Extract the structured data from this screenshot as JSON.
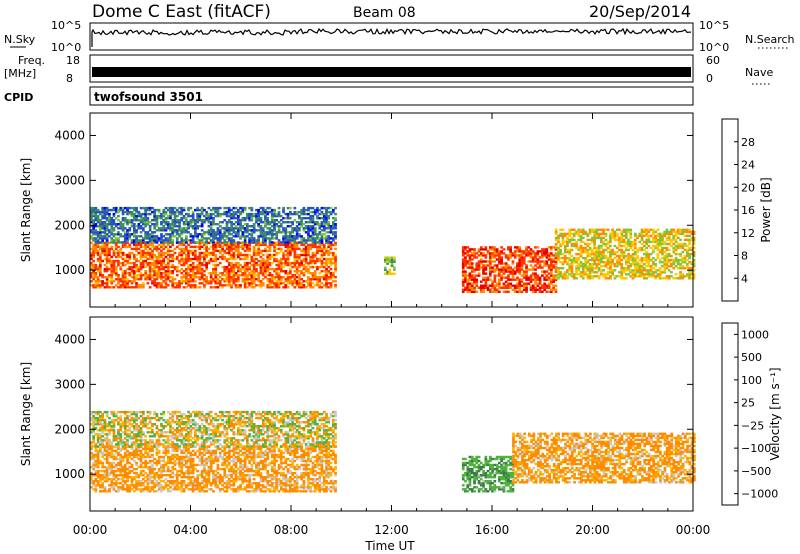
{
  "header": {
    "title": "Dome C East (fitACF)",
    "beam": "Beam 08",
    "date": "20/Sep/2014"
  },
  "top_panels": {
    "nsky_label": "N.Sky",
    "nsky_ticks": [
      "10^5",
      "10^0"
    ],
    "nsky_right_ticks": [
      "10^5",
      "10^0"
    ],
    "nsearch_label": "N.Search",
    "freq_label_1": "Freq.",
    "freq_label_2": "[MHz]",
    "freq_ticks": [
      "18",
      "8"
    ],
    "nave_ticks": [
      "60",
      "0"
    ],
    "nave_label": "Nave",
    "cpid_label": "CPID",
    "cpid_value": "twofsound 3501"
  },
  "chart_data": [
    {
      "type": "heatmap",
      "quantity": "Power",
      "ylabel": "Slant Range [km]",
      "xlabel": "Time UT",
      "xlim": [
        "00:00",
        "24:00"
      ],
      "ylim": [
        180,
        4500
      ],
      "x_ticks": [
        "00:00",
        "04:00",
        "08:00",
        "12:00",
        "16:00",
        "20:00",
        "00:00"
      ],
      "y_ticks": [
        1000,
        2000,
        3000,
        4000
      ],
      "colorbar": {
        "label": "Power [dB]",
        "ticks": [
          "4",
          "8",
          "12",
          "16",
          "20",
          "24",
          "28"
        ],
        "colors": [
          "#0000ff",
          "#2850c8",
          "#3c8c64",
          "#78c83c",
          "#ffc800",
          "#ff8c00",
          "#ff3200",
          "#e60000"
        ]
      },
      "echo_regions": [
        {
          "t_start": 0.0,
          "t_end": 9.8,
          "r_start": 600,
          "r_end": 1600,
          "power_db": 24
        },
        {
          "t_start": 0.0,
          "t_end": 9.8,
          "r_start": 1600,
          "r_end": 2400,
          "power_db": 8
        },
        {
          "t_start": 11.7,
          "t_end": 12.1,
          "r_start": 900,
          "r_end": 1300,
          "power_db": 14
        },
        {
          "t_start": 14.8,
          "t_end": 18.5,
          "r_start": 500,
          "r_end": 1500,
          "power_db": 26
        },
        {
          "t_start": 18.5,
          "t_end": 24.0,
          "r_start": 800,
          "r_end": 1900,
          "power_db": 18
        }
      ]
    },
    {
      "type": "heatmap",
      "quantity": "Velocity",
      "ylabel": "Slant Range [km]",
      "xlabel": "Time UT",
      "xlim": [
        "00:00",
        "24:00"
      ],
      "ylim": [
        180,
        4500
      ],
      "x_ticks": [
        "00:00",
        "04:00",
        "08:00",
        "12:00",
        "16:00",
        "20:00",
        "00:00"
      ],
      "y_ticks": [
        1000,
        2000,
        3000,
        4000
      ],
      "colorbar": {
        "label": "Velocity [m s⁻¹]",
        "ticks": [
          "1000",
          "500",
          "100",
          "25",
          "−25",
          "−100",
          "−500",
          "−1000"
        ],
        "colors": [
          "#1e3cb4",
          "#3c7850",
          "#50b43c",
          "#c8c8c8",
          "#ffb400",
          "#ff8c00",
          "#ff5000",
          "#f00000"
        ]
      },
      "echo_regions": [
        {
          "t_start": 0.0,
          "t_end": 9.8,
          "r_start": 600,
          "r_end": 1600,
          "velocity": -100
        },
        {
          "t_start": 0.0,
          "t_end": 9.8,
          "r_start": 1600,
          "r_end": 2400,
          "velocity": 0
        },
        {
          "t_start": 14.8,
          "t_end": 16.8,
          "r_start": 600,
          "r_end": 1400,
          "velocity": 200
        },
        {
          "t_start": 16.8,
          "t_end": 24.0,
          "r_start": 800,
          "r_end": 1900,
          "velocity": -100
        }
      ]
    }
  ]
}
